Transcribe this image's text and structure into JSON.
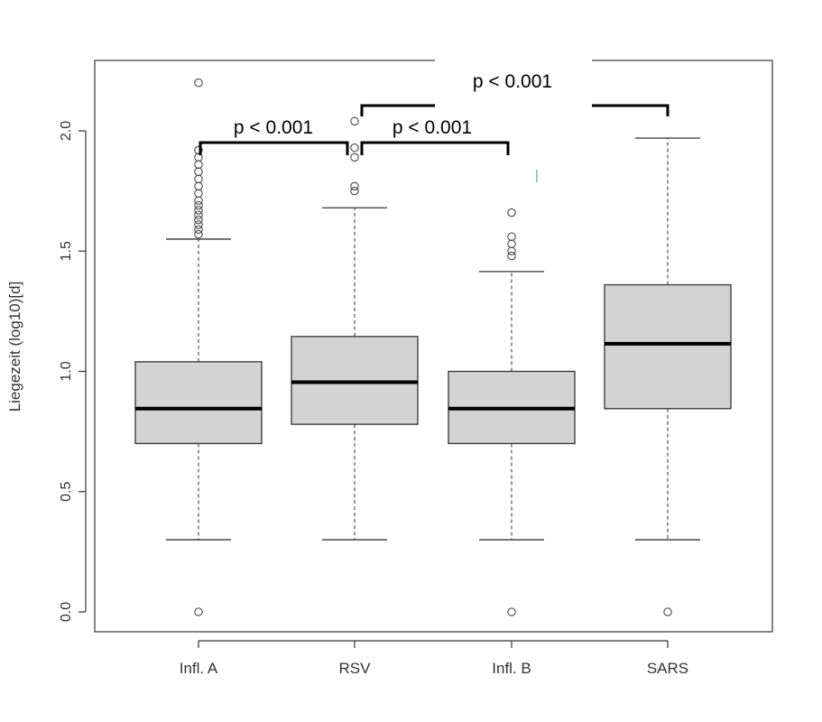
{
  "chart_data": {
    "type": "box",
    "title": "",
    "xlabel": "",
    "ylabel": "Liegezeit (log10)[d]",
    "ylim": [
      -0.08,
      2.3
    ],
    "yticks": [
      "0.0",
      "0.5",
      "1.0",
      "1.5",
      "2.0"
    ],
    "grid": false,
    "categories": [
      "Infl. A",
      "RSV",
      "Infl. B",
      "SARS"
    ],
    "boxes": [
      {
        "name": "Infl. A",
        "whisker_low": 0.3,
        "q1": 0.7,
        "median": 0.845,
        "q3": 1.04,
        "whisker_high": 1.55,
        "outliers": [
          0.0,
          1.57,
          1.59,
          1.61,
          1.63,
          1.65,
          1.67,
          1.69,
          1.71,
          1.74,
          1.77,
          1.8,
          1.83,
          1.86,
          1.89,
          1.92,
          2.2
        ]
      },
      {
        "name": "RSV",
        "whisker_low": 0.3,
        "q1": 0.78,
        "median": 0.955,
        "q3": 1.145,
        "whisker_high": 1.68,
        "outliers": [
          1.75,
          1.77,
          1.89,
          1.93,
          2.04
        ]
      },
      {
        "name": "Infl. B",
        "whisker_low": 0.3,
        "q1": 0.7,
        "median": 0.845,
        "q3": 1.0,
        "whisker_high": 1.415,
        "outliers": [
          0.0,
          1.48,
          1.5,
          1.53,
          1.56,
          1.66
        ]
      },
      {
        "name": "SARS",
        "whisker_low": 0.3,
        "q1": 0.845,
        "median": 1.115,
        "q3": 1.36,
        "whisker_high": 1.97,
        "outliers": [
          0.0
        ]
      }
    ],
    "annotations": [
      {
        "from": "Infl. A",
        "to": "RSV",
        "label": "p < 0.001"
      },
      {
        "from": "RSV",
        "to": "Infl. B",
        "label": "p < 0.001"
      },
      {
        "from": "RSV",
        "to": "SARS",
        "label": "p < 0.001"
      }
    ]
  }
}
